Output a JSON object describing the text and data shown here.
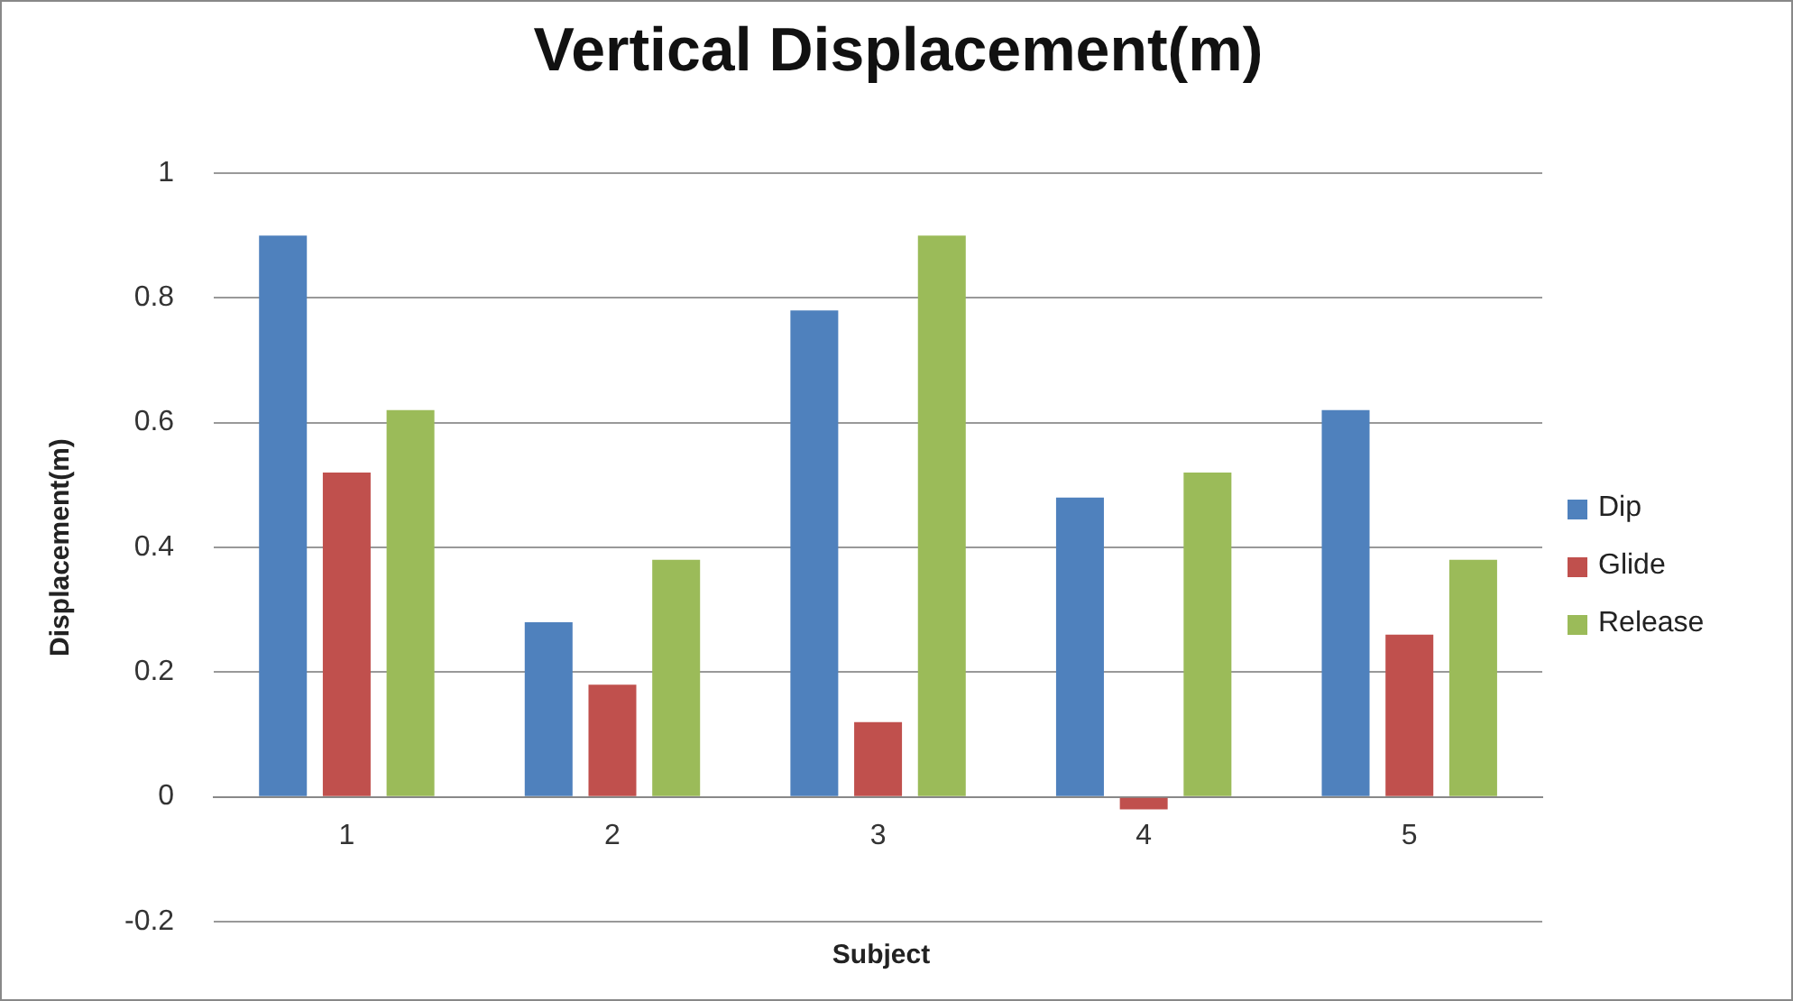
{
  "chart_data": {
    "type": "bar",
    "title": "Vertical Displacement(m)",
    "xlabel": "Subject",
    "ylabel": "Displacement(m)",
    "categories": [
      "1",
      "2",
      "3",
      "4",
      "5"
    ],
    "series": [
      {
        "name": "Dip",
        "color": "#4f81bd",
        "values": [
          0.9,
          0.28,
          0.78,
          0.48,
          0.62
        ]
      },
      {
        "name": "Glide",
        "color": "#c0504d",
        "values": [
          0.52,
          0.18,
          0.12,
          -0.02,
          0.26
        ]
      },
      {
        "name": "Release",
        "color": "#9bbb59",
        "values": [
          0.62,
          0.38,
          0.9,
          0.52,
          0.38
        ]
      }
    ],
    "ylim": [
      -0.2,
      1
    ],
    "yticks": [
      -0.2,
      0,
      0.2,
      0.4,
      0.6,
      0.8,
      1
    ],
    "grid": "y",
    "legend": "right"
  }
}
